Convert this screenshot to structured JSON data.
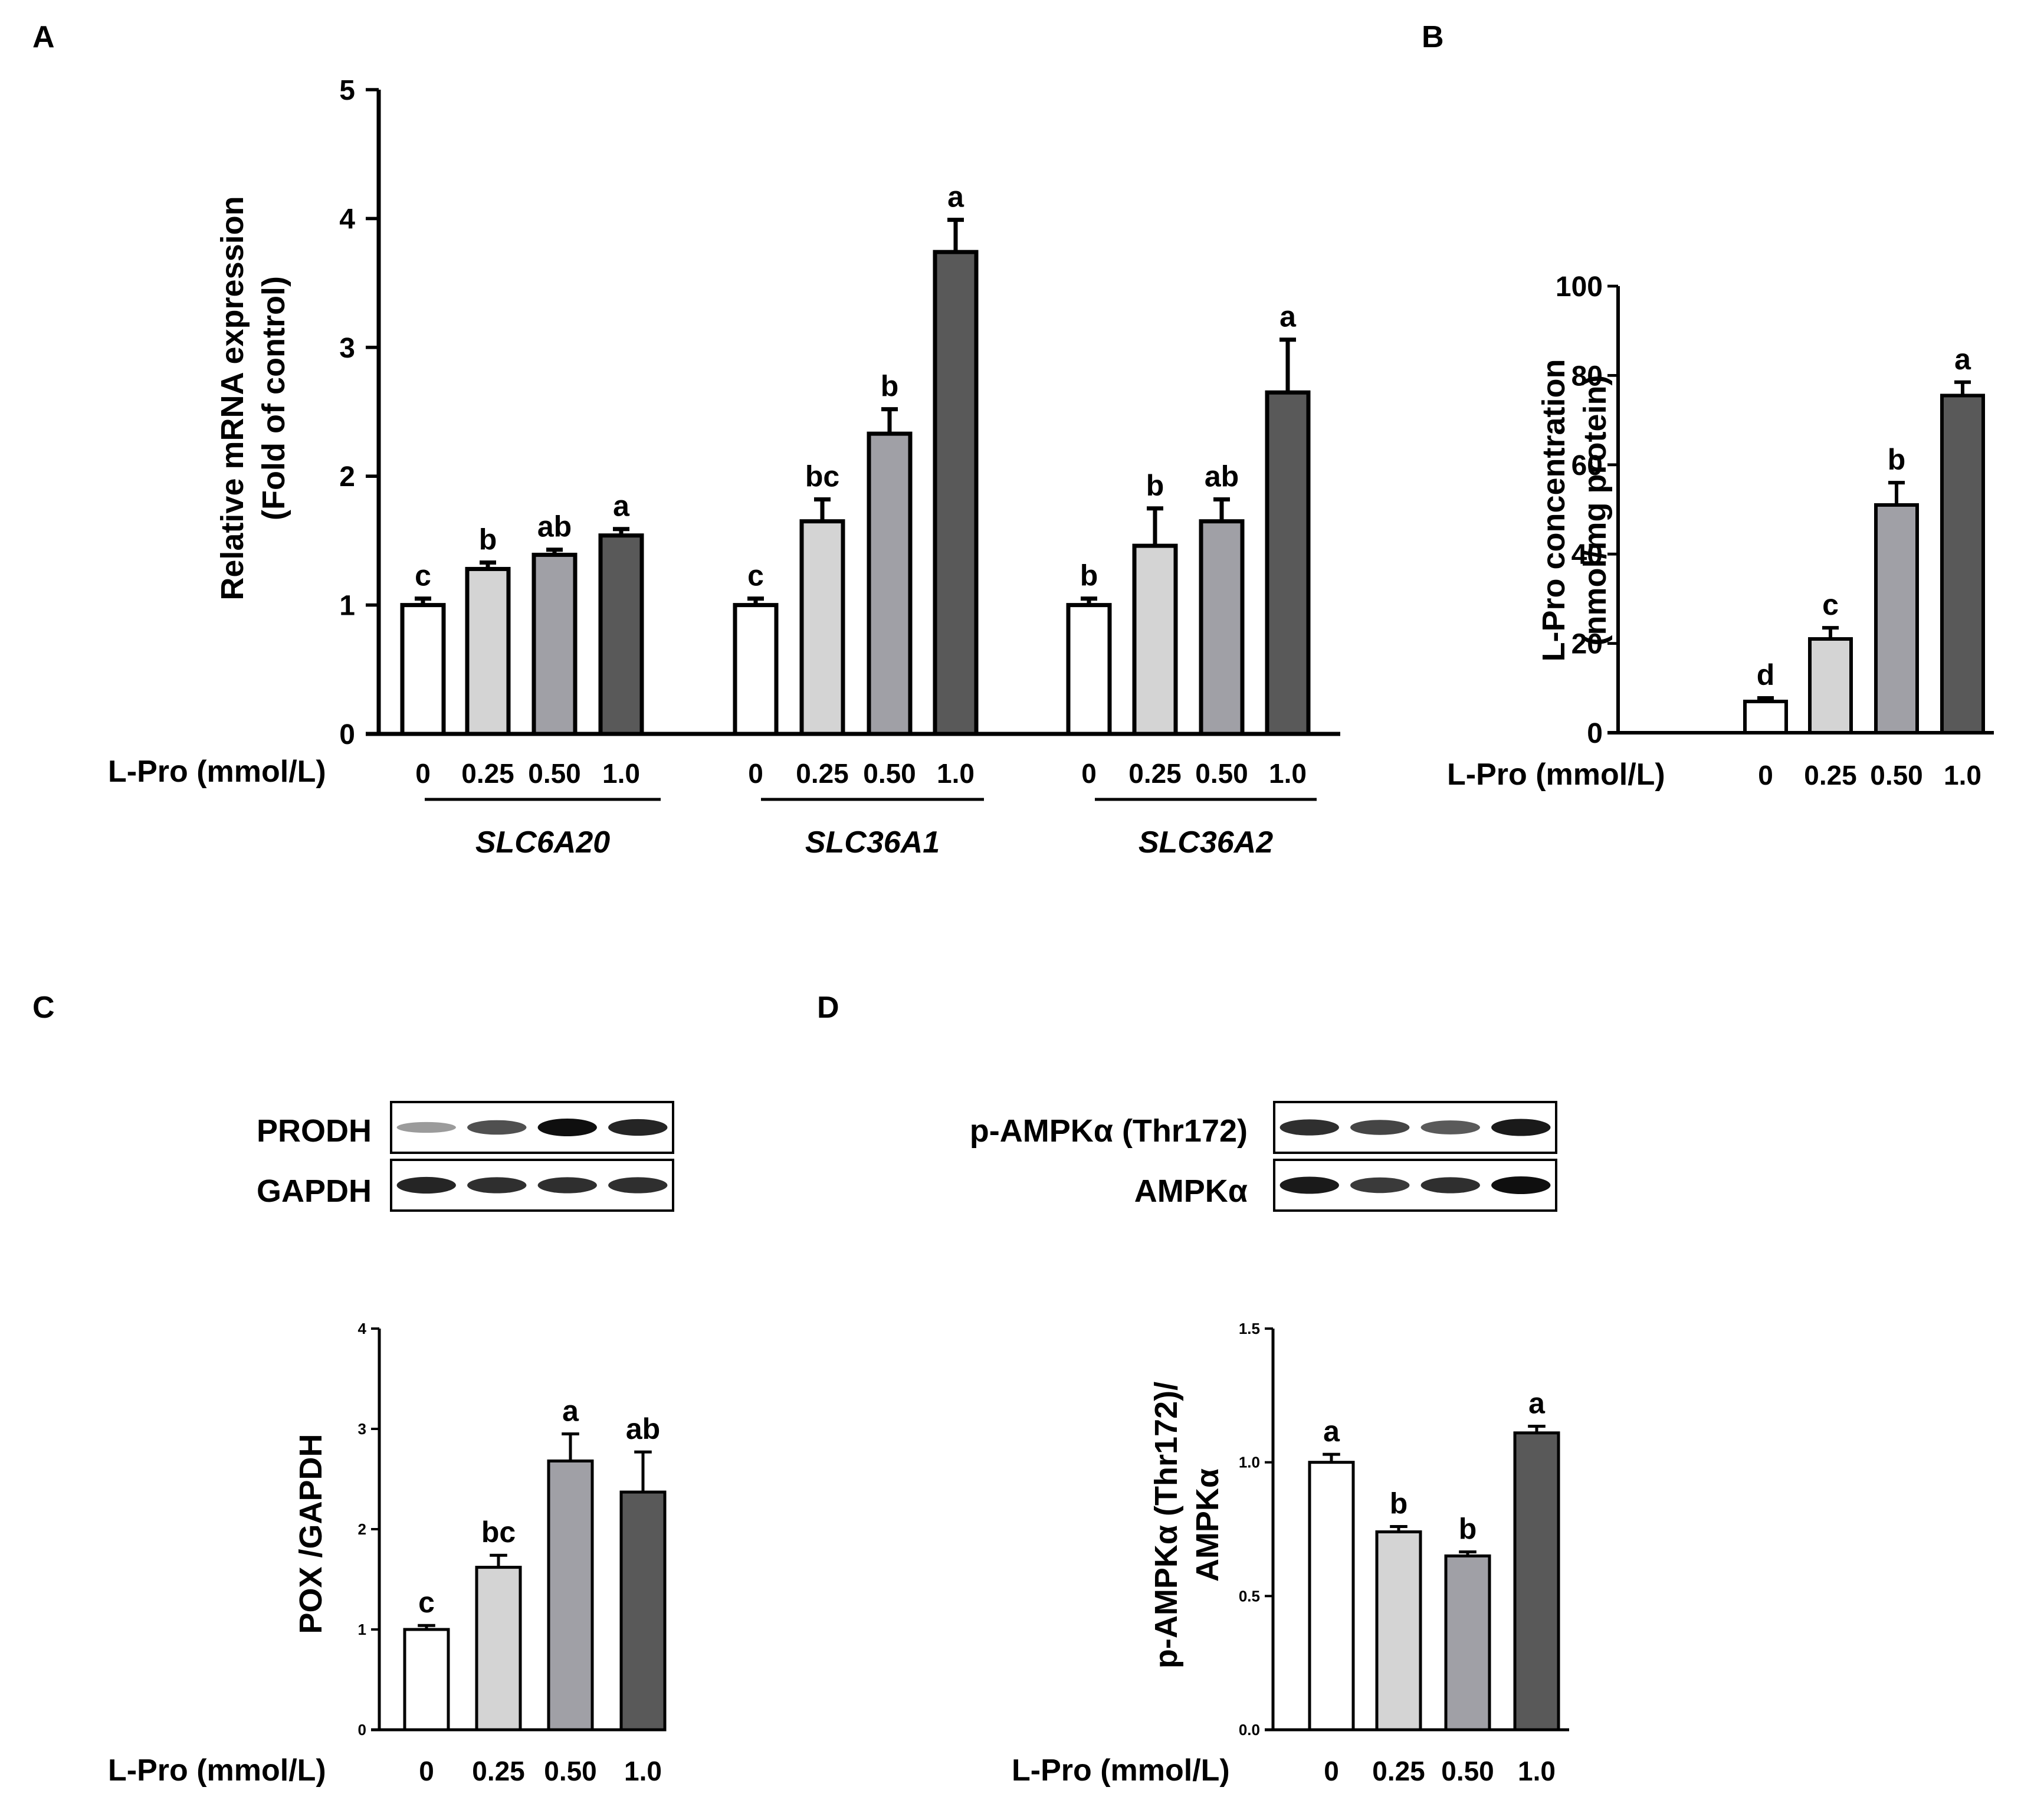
{
  "panels": {
    "A": "A",
    "B": "B",
    "C": "C",
    "D": "D"
  },
  "x_row_label": "L-Pro (mmol/L)",
  "colors": [
    "#ffffff",
    "#d4d4d4",
    "#a0a0a6",
    "#595959"
  ],
  "blots": {
    "C": {
      "top_label": "PRODH",
      "bottom_label": "GAPDH",
      "top_intensity": [
        0.35,
        0.7,
        1.0,
        0.9
      ],
      "bottom_intensity": [
        0.9,
        0.85,
        0.85,
        0.85
      ]
    },
    "D": {
      "top_label": "p-AMPKα (Thr172)",
      "bottom_label": "AMPKα",
      "top_intensity": [
        0.85,
        0.75,
        0.65,
        0.95
      ],
      "bottom_intensity": [
        0.95,
        0.8,
        0.85,
        1.0
      ]
    }
  },
  "chart_data": [
    {
      "id": "A",
      "type": "bar",
      "ylabel": "Relative mRNA expression",
      "ylabel2": "(Fold of control)",
      "ylim": [
        0,
        5
      ],
      "yticks": [
        "0",
        "1",
        "2",
        "3",
        "4",
        "5"
      ],
      "xlabel": "L-Pro (mmol/L)",
      "categories": [
        "0",
        "0.25",
        "0.50",
        "1.0"
      ],
      "groups": [
        {
          "name": "SLC6A20",
          "values": [
            1.0,
            1.28,
            1.39,
            1.54
          ],
          "errors": [
            0.05,
            0.05,
            0.04,
            0.05
          ],
          "letters": [
            "c",
            "b",
            "ab",
            "a"
          ]
        },
        {
          "name": "SLC36A1",
          "values": [
            1.0,
            1.65,
            2.33,
            3.74
          ],
          "errors": [
            0.05,
            0.17,
            0.19,
            0.25
          ],
          "letters": [
            "c",
            "bc",
            "b",
            "a"
          ]
        },
        {
          "name": "SLC36A2",
          "values": [
            1.0,
            1.46,
            1.65,
            2.65
          ],
          "errors": [
            0.05,
            0.29,
            0.17,
            0.41
          ],
          "letters": [
            "b",
            "b",
            "ab",
            "a"
          ]
        }
      ]
    },
    {
      "id": "B",
      "type": "bar",
      "ylabel": "L-Pro concentration",
      "ylabel2": "(nmol/mg protein)",
      "ylim": [
        0,
        100
      ],
      "yticks": [
        "0",
        "20",
        "40",
        "60",
        "80",
        "100"
      ],
      "xlabel": "L-Pro (mmol/L)",
      "categories": [
        "0",
        "0.25",
        "0.50",
        "1.0"
      ],
      "values": [
        7,
        21,
        51,
        75.5
      ],
      "errors": [
        0.8,
        2.5,
        5,
        3
      ],
      "letters": [
        "d",
        "c",
        "b",
        "a"
      ]
    },
    {
      "id": "C",
      "type": "bar",
      "ylabel": "POX /GAPDH",
      "ylim": [
        0,
        4
      ],
      "yticks": [
        "0",
        "1",
        "2",
        "3",
        "4"
      ],
      "xlabel": "L-Pro (mmol/L)",
      "categories": [
        "0",
        "0.25",
        "0.50",
        "1.0"
      ],
      "values": [
        1.0,
        1.62,
        2.68,
        2.37
      ],
      "errors": [
        0.04,
        0.12,
        0.27,
        0.4
      ],
      "letters": [
        "c",
        "bc",
        "a",
        "ab"
      ]
    },
    {
      "id": "D",
      "type": "bar",
      "ylabel": "p-AMPKα (Thr172)/",
      "ylabel2": "AMPKα",
      "ylim": [
        0,
        1.5
      ],
      "yticks": [
        "0.0",
        "0.5",
        "1.0",
        "1.5"
      ],
      "xlabel": "L-Pro (mmol/L)",
      "categories": [
        "0",
        "0.25",
        "0.50",
        "1.0"
      ],
      "values": [
        1.0,
        0.74,
        0.65,
        1.11
      ],
      "errors": [
        0.03,
        0.02,
        0.015,
        0.025
      ],
      "letters": [
        "a",
        "b",
        "b",
        "a"
      ]
    }
  ]
}
